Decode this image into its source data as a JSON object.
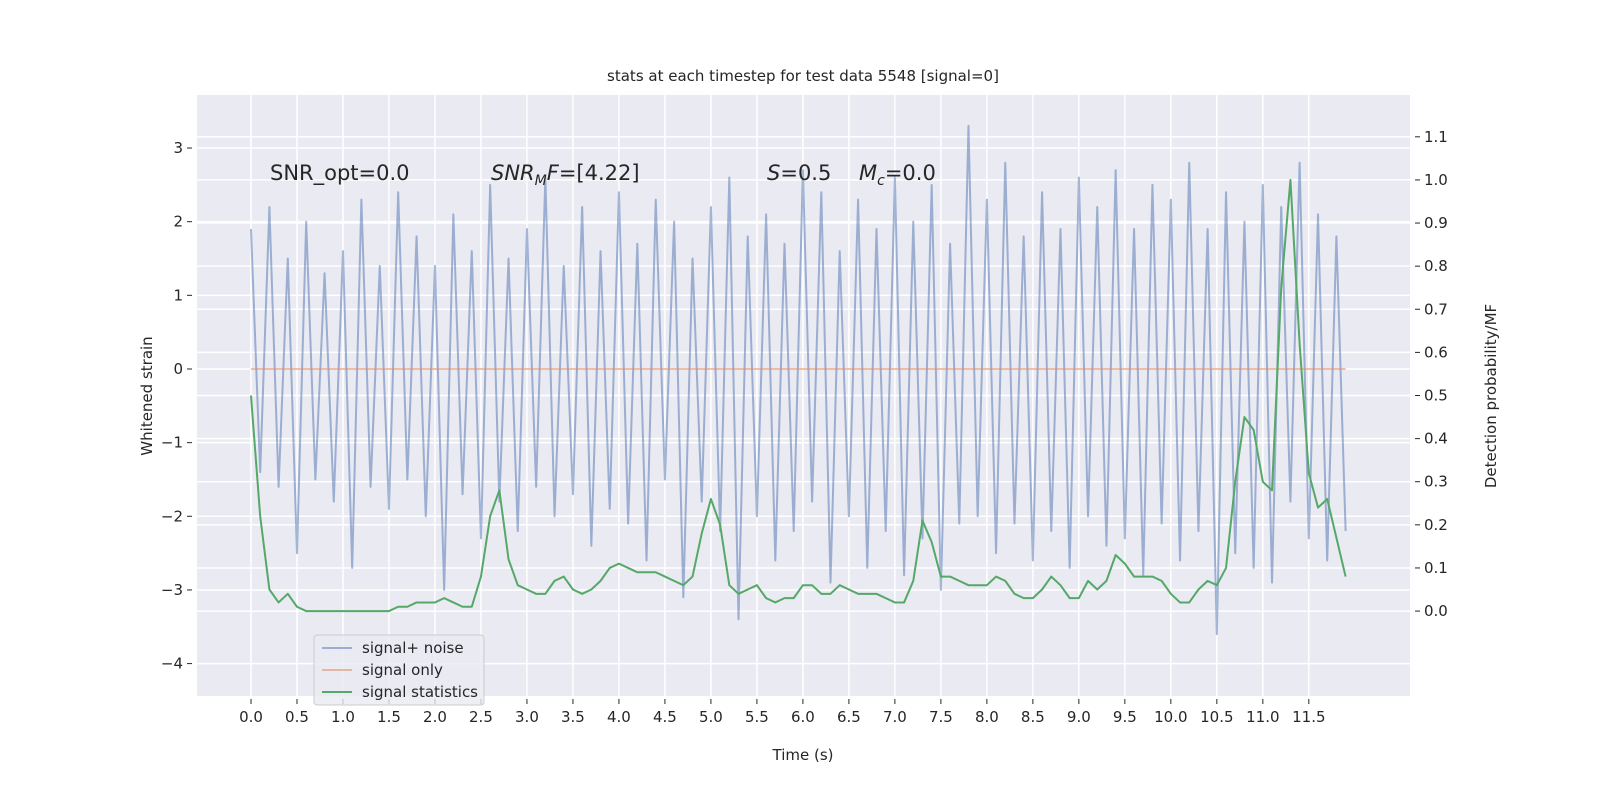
{
  "chart_data": {
    "type": "line",
    "title": "stats at each timestep for test data 5548 [signal=0]",
    "xlabel": "Time (s)",
    "ylabel": "Whitened strain",
    "y2label": "Detection probability/MF",
    "grid": true,
    "legend": "lower left",
    "x": [
      0.0,
      0.1,
      0.2,
      0.3,
      0.4,
      0.5,
      0.6,
      0.7,
      0.8,
      0.9,
      1.0,
      1.1,
      1.2,
      1.3,
      1.4,
      1.5,
      1.6,
      1.7,
      1.8,
      1.9,
      2.0,
      2.1,
      2.2,
      2.3,
      2.4,
      2.5,
      2.6,
      2.7,
      2.8,
      2.9,
      3.0,
      3.1,
      3.2,
      3.3,
      3.4,
      3.5,
      3.6,
      3.7,
      3.8,
      3.9,
      4.0,
      4.1,
      4.2,
      4.3,
      4.4,
      4.5,
      4.6,
      4.7,
      4.8,
      4.9,
      5.0,
      5.1,
      5.2,
      5.3,
      5.4,
      5.5,
      5.6,
      5.7,
      5.8,
      5.9,
      6.0,
      6.1,
      6.2,
      6.3,
      6.4,
      6.5,
      6.6,
      6.7,
      6.8,
      6.9,
      7.0,
      7.1,
      7.2,
      7.3,
      7.4,
      7.5,
      7.6,
      7.7,
      7.8,
      7.9,
      8.0,
      8.1,
      8.2,
      8.3,
      8.4,
      8.5,
      8.6,
      8.7,
      8.8,
      8.9,
      9.0,
      9.1,
      9.2,
      9.3,
      9.4,
      9.5,
      9.6,
      9.7,
      9.8,
      9.9,
      10.0,
      10.1,
      10.2,
      10.3,
      10.4,
      10.5,
      10.6,
      10.7,
      10.8,
      10.9,
      11.0,
      11.1,
      11.2,
      11.3,
      11.4,
      11.5,
      11.6,
      11.7,
      11.8,
      11.9
    ],
    "series": [
      {
        "name": "signal+ noise",
        "color": "#4c72b0",
        "opacity": 0.5,
        "values": [
          1.9,
          -1.4,
          2.2,
          -1.6,
          1.5,
          -2.5,
          2.0,
          -1.5,
          1.3,
          -1.8,
          1.6,
          -2.7,
          2.3,
          -1.6,
          1.4,
          -1.9,
          2.4,
          -1.5,
          1.8,
          -2.0,
          1.4,
          -3.0,
          2.1,
          -1.7,
          1.6,
          -2.3,
          2.5,
          -1.8,
          1.5,
          -2.2,
          1.9,
          -1.6,
          2.6,
          -2.0,
          1.4,
          -1.7,
          2.2,
          -2.4,
          1.6,
          -1.9,
          2.4,
          -2.1,
          1.7,
          -2.6,
          2.3,
          -1.5,
          2.0,
          -3.1,
          1.5,
          -1.8,
          2.2,
          -2.2,
          2.6,
          -3.4,
          1.8,
          -2.0,
          2.1,
          -2.6,
          1.7,
          -2.2,
          2.7,
          -1.8,
          2.4,
          -2.9,
          1.6,
          -2.0,
          2.3,
          -2.7,
          1.9,
          -2.2,
          2.6,
          -2.8,
          2.0,
          -2.3,
          2.5,
          -3.0,
          1.7,
          -2.1,
          3.3,
          -2.0,
          2.3,
          -2.5,
          2.8,
          -2.1,
          1.8,
          -2.6,
          2.4,
          -2.2,
          1.9,
          -2.7,
          2.6,
          -2.0,
          2.2,
          -2.4,
          2.7,
          -2.3,
          1.9,
          -2.8,
          2.5,
          -2.1,
          2.3,
          -2.6,
          2.8,
          -2.2,
          1.9,
          -3.6,
          2.4,
          -2.5,
          2.0,
          -2.7,
          2.5,
          -2.9,
          2.2,
          -1.8,
          2.8,
          -2.3,
          2.1,
          -2.6,
          1.8,
          -2.2
        ]
      },
      {
        "name": "signal only",
        "color": "#dd8452",
        "opacity": 0.5,
        "values": [
          0,
          0,
          0,
          0,
          0,
          0,
          0,
          0,
          0,
          0,
          0,
          0,
          0,
          0,
          0,
          0,
          0,
          0,
          0,
          0,
          0,
          0,
          0,
          0,
          0,
          0,
          0,
          0,
          0,
          0,
          0,
          0,
          0,
          0,
          0,
          0,
          0,
          0,
          0,
          0,
          0,
          0,
          0,
          0,
          0,
          0,
          0,
          0,
          0,
          0,
          0,
          0,
          0,
          0,
          0,
          0,
          0,
          0,
          0,
          0,
          0,
          0,
          0,
          0,
          0,
          0,
          0,
          0,
          0,
          0,
          0,
          0,
          0,
          0,
          0,
          0,
          0,
          0,
          0,
          0,
          0,
          0,
          0,
          0,
          0,
          0,
          0,
          0,
          0,
          0,
          0,
          0,
          0,
          0,
          0,
          0,
          0,
          0,
          0,
          0,
          0,
          0,
          0,
          0,
          0,
          0,
          0,
          0,
          0,
          0,
          0,
          0,
          0,
          0,
          0,
          0,
          0,
          0,
          0,
          0
        ]
      },
      {
        "name": "signal statistics",
        "color": "#55a868",
        "opacity": 1,
        "axis": "y2",
        "values": [
          0.5,
          0.22,
          0.05,
          0.02,
          0.04,
          0.01,
          0.0,
          0.0,
          0.0,
          0.0,
          0.0,
          0.0,
          0.0,
          0.0,
          0.0,
          0.0,
          0.01,
          0.01,
          0.02,
          0.02,
          0.02,
          0.03,
          0.02,
          0.01,
          0.01,
          0.08,
          0.22,
          0.28,
          0.12,
          0.06,
          0.05,
          0.04,
          0.04,
          0.07,
          0.08,
          0.05,
          0.04,
          0.05,
          0.07,
          0.1,
          0.11,
          0.1,
          0.09,
          0.09,
          0.09,
          0.08,
          0.07,
          0.06,
          0.08,
          0.18,
          0.26,
          0.2,
          0.06,
          0.04,
          0.05,
          0.06,
          0.03,
          0.02,
          0.03,
          0.03,
          0.06,
          0.06,
          0.04,
          0.04,
          0.06,
          0.05,
          0.04,
          0.04,
          0.04,
          0.03,
          0.02,
          0.02,
          0.07,
          0.21,
          0.16,
          0.08,
          0.08,
          0.07,
          0.06,
          0.06,
          0.06,
          0.08,
          0.07,
          0.04,
          0.03,
          0.03,
          0.05,
          0.08,
          0.06,
          0.03,
          0.03,
          0.07,
          0.05,
          0.07,
          0.13,
          0.11,
          0.08,
          0.08,
          0.08,
          0.07,
          0.04,
          0.02,
          0.02,
          0.05,
          0.07,
          0.06,
          0.1,
          0.3,
          0.45,
          0.42,
          0.3,
          0.28,
          0.75,
          1.0,
          0.62,
          0.32,
          0.24,
          0.26,
          0.17,
          0.08
        ]
      }
    ],
    "xlim": [
      -0.587,
      12.6
    ],
    "xticks": [
      {
        "value": 0,
        "label": "0.0"
      },
      {
        "value": 0.5,
        "label": "0.5"
      },
      {
        "value": 1,
        "label": "1.0"
      },
      {
        "value": 1.5,
        "label": "1.5"
      },
      {
        "value": 2,
        "label": "2.0"
      },
      {
        "value": 2.5,
        "label": "2.5"
      },
      {
        "value": 3,
        "label": "3.0"
      },
      {
        "value": 3.5,
        "label": "3.5"
      },
      {
        "value": 4,
        "label": "4.0"
      },
      {
        "value": 4.5,
        "label": "4.5"
      },
      {
        "value": 5,
        "label": "5.0"
      },
      {
        "value": 5.5,
        "label": "5.5"
      },
      {
        "value": 6,
        "label": "6.0"
      },
      {
        "value": 6.5,
        "label": "6.5"
      },
      {
        "value": 7,
        "label": "7.0"
      },
      {
        "value": 7.5,
        "label": "7.5"
      },
      {
        "value": 8,
        "label": "8.0"
      },
      {
        "value": 8.5,
        "label": "8.5"
      },
      {
        "value": 9,
        "label": "9.0"
      },
      {
        "value": 9.5,
        "label": "9.5"
      },
      {
        "value": 10,
        "label": "10.0"
      },
      {
        "value": 10.5,
        "label": "10.5"
      },
      {
        "value": 11,
        "label": "11.0"
      },
      {
        "value": 11.5,
        "label": "11.5"
      }
    ],
    "ylim": [
      -4.44,
      3.72
    ],
    "yticks": [
      {
        "value": -4,
        "label": "−4"
      },
      {
        "value": -3,
        "label": "−3"
      },
      {
        "value": -2,
        "label": "−2"
      },
      {
        "value": -1,
        "label": "−1"
      },
      0,
      1,
      2,
      3
    ],
    "y2lim": [
      -0.197,
      1.197
    ],
    "y2ticks": [
      {
        "value": 0,
        "label": "0.0"
      },
      {
        "value": 0.1,
        "label": "0.1"
      },
      {
        "value": 0.2,
        "label": "0.2"
      },
      {
        "value": 0.3,
        "label": "0.3"
      },
      {
        "value": 0.4,
        "label": "0.4"
      },
      {
        "value": 0.5,
        "label": "0.5"
      },
      {
        "value": 0.6,
        "label": "0.6"
      },
      {
        "value": 0.7,
        "label": "0.7"
      },
      {
        "value": 0.8,
        "label": "0.8"
      },
      {
        "value": 0.9,
        "label": "0.9"
      },
      {
        "value": 1,
        "label": "1.0"
      },
      {
        "value": 1.1,
        "label": "1.1"
      }
    ],
    "annotations": [
      {
        "parts": [
          {
            "text": "SNR_opt=0.0"
          }
        ]
      },
      {
        "parts": [
          {
            "text": "SNR",
            "italic": true
          },
          {
            "text": "M",
            "italic": true,
            "sub": true
          },
          {
            "text": "F",
            "italic": true
          },
          {
            "text": "=[4.22]"
          }
        ]
      },
      {
        "parts": [
          {
            "text": "S",
            "italic": true
          },
          {
            "text": "=0.5"
          }
        ]
      },
      {
        "parts": [
          {
            "text": "M",
            "italic": true
          },
          {
            "text": "c",
            "italic": true,
            "sub": true
          },
          {
            "text": "=0.0"
          }
        ]
      }
    ]
  }
}
